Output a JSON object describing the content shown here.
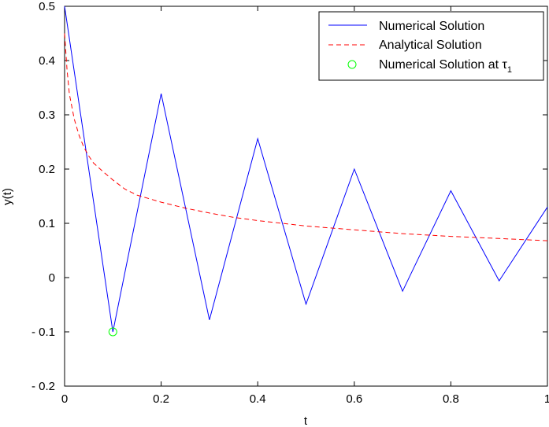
{
  "chart_data": {
    "type": "line",
    "xlabel": "t",
    "ylabel": "y(t)",
    "xlim": [
      0,
      1
    ],
    "ylim": [
      -0.2,
      0.5
    ],
    "xticks": [
      0,
      0.2,
      0.4,
      0.6,
      0.8,
      1
    ],
    "xtick_labels": [
      "0",
      "0.2",
      "0.4",
      "0.6",
      "0.8",
      "1"
    ],
    "yticks": [
      -0.2,
      -0.1,
      0,
      0.1,
      0.2,
      0.3,
      0.4,
      0.5
    ],
    "ytick_labels": [
      "- 0.2",
      "- 0.1",
      "0",
      "0.1",
      "0.2",
      "0.3",
      "0.4",
      "0.5"
    ],
    "grid": false,
    "legend_position": "top-right",
    "series": [
      {
        "name": "Numerical Solution",
        "style": "solid",
        "color": "#0000ff",
        "x": [
          0,
          0.1,
          0.2,
          0.3,
          0.4,
          0.5,
          0.6,
          0.7,
          0.8,
          0.9,
          1.0
        ],
        "y": [
          0.5,
          -0.1,
          0.339,
          -0.078,
          0.256,
          -0.049,
          0.2,
          -0.025,
          0.16,
          -0.006,
          0.13
        ]
      },
      {
        "name": "Analytical Solution",
        "style": "dashed",
        "color": "#ff0000",
        "x": [
          0,
          0.005,
          0.01,
          0.02,
          0.03,
          0.04,
          0.05,
          0.06,
          0.08,
          0.1,
          0.125,
          0.15,
          0.2,
          0.25,
          0.3,
          0.35,
          0.4,
          0.5,
          0.6,
          0.7,
          0.8,
          0.9,
          1.0
        ],
        "y": [
          0.45,
          0.383,
          0.338,
          0.292,
          0.262,
          0.24,
          0.224,
          0.211,
          0.195,
          0.18,
          0.163,
          0.152,
          0.139,
          0.128,
          0.119,
          0.111,
          0.105,
          0.095,
          0.088,
          0.081,
          0.076,
          0.072,
          0.068
        ]
      }
    ],
    "markers": [
      {
        "name": "Numerical Solution at τ1",
        "label_main": "Numerical Solution at τ",
        "label_sub": "1",
        "shape": "circle",
        "color": "#00ff00",
        "x": 0.1,
        "y": -0.1
      }
    ]
  }
}
